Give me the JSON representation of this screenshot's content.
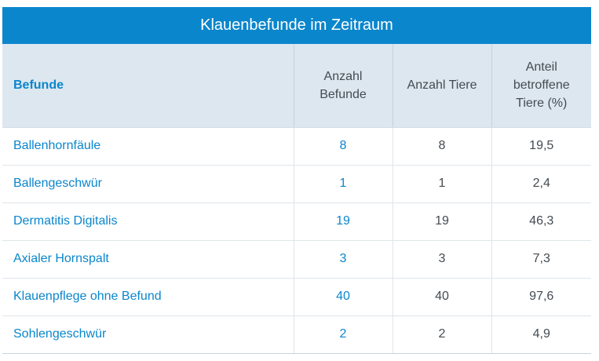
{
  "table": {
    "title": "Klauenbefunde im Zeitraum",
    "headers": {
      "befunde": "Befunde",
      "anzahl_befunde": "Anzahl Befunde",
      "anzahl_tiere": "Anzahl Tiere",
      "anteil": "Anteil betroffene Tiere (%)"
    },
    "rows": [
      {
        "name": "Ballenhornfäule",
        "befunde": "8",
        "tiere": "8",
        "anteil": "19,5"
      },
      {
        "name": "Ballengeschwür",
        "befunde": "1",
        "tiere": "1",
        "anteil": "2,4"
      },
      {
        "name": "Dermatitis Digitalis",
        "befunde": "19",
        "tiere": "19",
        "anteil": "46,3"
      },
      {
        "name": "Axialer Hornspalt",
        "befunde": "3",
        "tiere": "3",
        "anteil": "7,3"
      },
      {
        "name": "Klauenpflege ohne Befund",
        "befunde": "40",
        "tiere": "40",
        "anteil": "97,6"
      },
      {
        "name": "Sohlengeschwür",
        "befunde": "2",
        "tiere": "2",
        "anteil": "4,9"
      }
    ]
  },
  "colors": {
    "accent": "#0a86cc",
    "header_bg": "#dde7ef",
    "text": "#444b52"
  }
}
